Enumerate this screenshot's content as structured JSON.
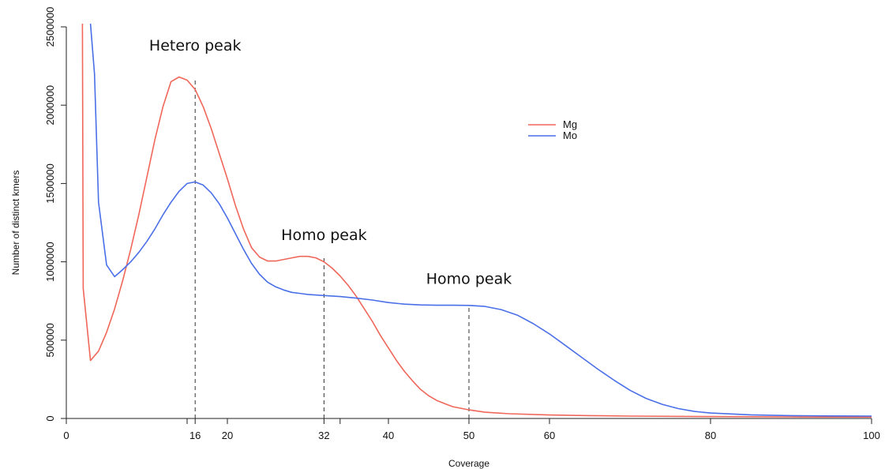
{
  "chart_data": {
    "type": "line",
    "title": "",
    "xlabel": "Coverage",
    "ylabel": "Number of distinct kmers",
    "xlim": [
      0,
      100
    ],
    "ylim": [
      0,
      2500000
    ],
    "x_ticks": [
      "0",
      "16",
      "20",
      "32",
      "40",
      "50",
      "60",
      "80",
      "100"
    ],
    "x_tick_values": [
      0,
      16,
      20,
      32,
      40,
      50,
      60,
      80,
      100
    ],
    "x_minor_ticks": [
      15,
      34
    ],
    "y_ticks": [
      "0",
      "500000",
      "1000000",
      "1500000",
      "2000000",
      "2500000"
    ],
    "y_tick_values": [
      0,
      500000,
      1000000,
      1500000,
      2000000,
      2500000
    ],
    "grid": false,
    "legend_position": "top-right",
    "series": [
      {
        "name": "Mg",
        "color": "#f0675a",
        "points": [
          [
            2,
            2550000
          ],
          [
            2.1,
            830000
          ],
          [
            3,
            370000
          ],
          [
            4,
            430000
          ],
          [
            5,
            550000
          ],
          [
            6,
            700000
          ],
          [
            7,
            880000
          ],
          [
            8,
            1080000
          ],
          [
            9,
            1300000
          ],
          [
            10,
            1540000
          ],
          [
            11,
            1780000
          ],
          [
            12,
            1990000
          ],
          [
            13,
            2150000
          ],
          [
            14,
            2180000
          ],
          [
            15,
            2160000
          ],
          [
            16,
            2100000
          ],
          [
            17,
            1990000
          ],
          [
            18,
            1850000
          ],
          [
            19,
            1690000
          ],
          [
            20,
            1530000
          ],
          [
            21,
            1360000
          ],
          [
            22,
            1210000
          ],
          [
            23,
            1090000
          ],
          [
            24,
            1030000
          ],
          [
            25,
            1005000
          ],
          [
            26,
            1005000
          ],
          [
            27,
            1015000
          ],
          [
            28,
            1025000
          ],
          [
            29,
            1035000
          ],
          [
            30,
            1035000
          ],
          [
            31,
            1025000
          ],
          [
            32,
            1000000
          ],
          [
            33,
            960000
          ],
          [
            34,
            910000
          ],
          [
            35,
            850000
          ],
          [
            36,
            780000
          ],
          [
            37,
            700000
          ],
          [
            38,
            620000
          ],
          [
            39,
            530000
          ],
          [
            40,
            450000
          ],
          [
            41,
            370000
          ],
          [
            42,
            300000
          ],
          [
            43,
            240000
          ],
          [
            44,
            185000
          ],
          [
            45,
            145000
          ],
          [
            46,
            115000
          ],
          [
            47,
            95000
          ],
          [
            48,
            75000
          ],
          [
            50,
            55000
          ],
          [
            52,
            40000
          ],
          [
            55,
            30000
          ],
          [
            60,
            22000
          ],
          [
            65,
            18000
          ],
          [
            70,
            15000
          ],
          [
            80,
            12000
          ],
          [
            90,
            10000
          ],
          [
            100,
            9000
          ]
        ]
      },
      {
        "name": "Mo",
        "color": "#4a6fe8",
        "points": [
          [
            3,
            2550000
          ],
          [
            3.5,
            2200000
          ],
          [
            4,
            1380000
          ],
          [
            5,
            980000
          ],
          [
            6,
            905000
          ],
          [
            7,
            950000
          ],
          [
            8,
            1000000
          ],
          [
            9,
            1060000
          ],
          [
            10,
            1130000
          ],
          [
            11,
            1210000
          ],
          [
            12,
            1300000
          ],
          [
            13,
            1380000
          ],
          [
            14,
            1450000
          ],
          [
            15,
            1500000
          ],
          [
            16,
            1510000
          ],
          [
            17,
            1490000
          ],
          [
            18,
            1440000
          ],
          [
            19,
            1370000
          ],
          [
            20,
            1280000
          ],
          [
            21,
            1180000
          ],
          [
            22,
            1080000
          ],
          [
            23,
            990000
          ],
          [
            24,
            920000
          ],
          [
            25,
            870000
          ],
          [
            26,
            840000
          ],
          [
            27,
            820000
          ],
          [
            28,
            805000
          ],
          [
            30,
            792000
          ],
          [
            32,
            785000
          ],
          [
            34,
            778000
          ],
          [
            36,
            768000
          ],
          [
            38,
            756000
          ],
          [
            40,
            740000
          ],
          [
            42,
            730000
          ],
          [
            44,
            725000
          ],
          [
            46,
            723000
          ],
          [
            48,
            723000
          ],
          [
            50,
            722000
          ],
          [
            52,
            715000
          ],
          [
            54,
            695000
          ],
          [
            56,
            660000
          ],
          [
            58,
            605000
          ],
          [
            60,
            540000
          ],
          [
            62,
            465000
          ],
          [
            64,
            390000
          ],
          [
            66,
            315000
          ],
          [
            68,
            245000
          ],
          [
            70,
            180000
          ],
          [
            72,
            128000
          ],
          [
            74,
            90000
          ],
          [
            76,
            63000
          ],
          [
            78,
            45000
          ],
          [
            80,
            35000
          ],
          [
            85,
            23000
          ],
          [
            90,
            18000
          ],
          [
            95,
            16000
          ],
          [
            100,
            15000
          ]
        ]
      }
    ],
    "reference_lines": [
      {
        "x": 16,
        "y_top": 2160000
      },
      {
        "x": 32,
        "y_top": 1040000
      },
      {
        "x": 50,
        "y_top": 725000
      }
    ],
    "annotations": [
      {
        "text": "Hetero peak",
        "x": 16,
        "y": 2350000
      },
      {
        "text": "Homo peak",
        "x": 32,
        "y": 1140000
      },
      {
        "text": "Homo peak",
        "x": 50,
        "y": 860000
      }
    ]
  }
}
